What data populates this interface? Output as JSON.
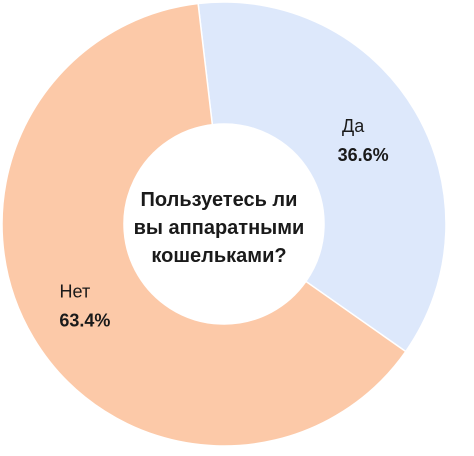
{
  "chart_data": {
    "type": "pie",
    "title": "Пользуетесь ли вы аппаратными кошельками?",
    "categories": [
      "Да",
      "Нет"
    ],
    "values": [
      36.6,
      63.4
    ],
    "value_labels": [
      "36.6%",
      "63.4%"
    ],
    "colors": [
      "#dde8fb",
      "#fcc9a8"
    ]
  }
}
